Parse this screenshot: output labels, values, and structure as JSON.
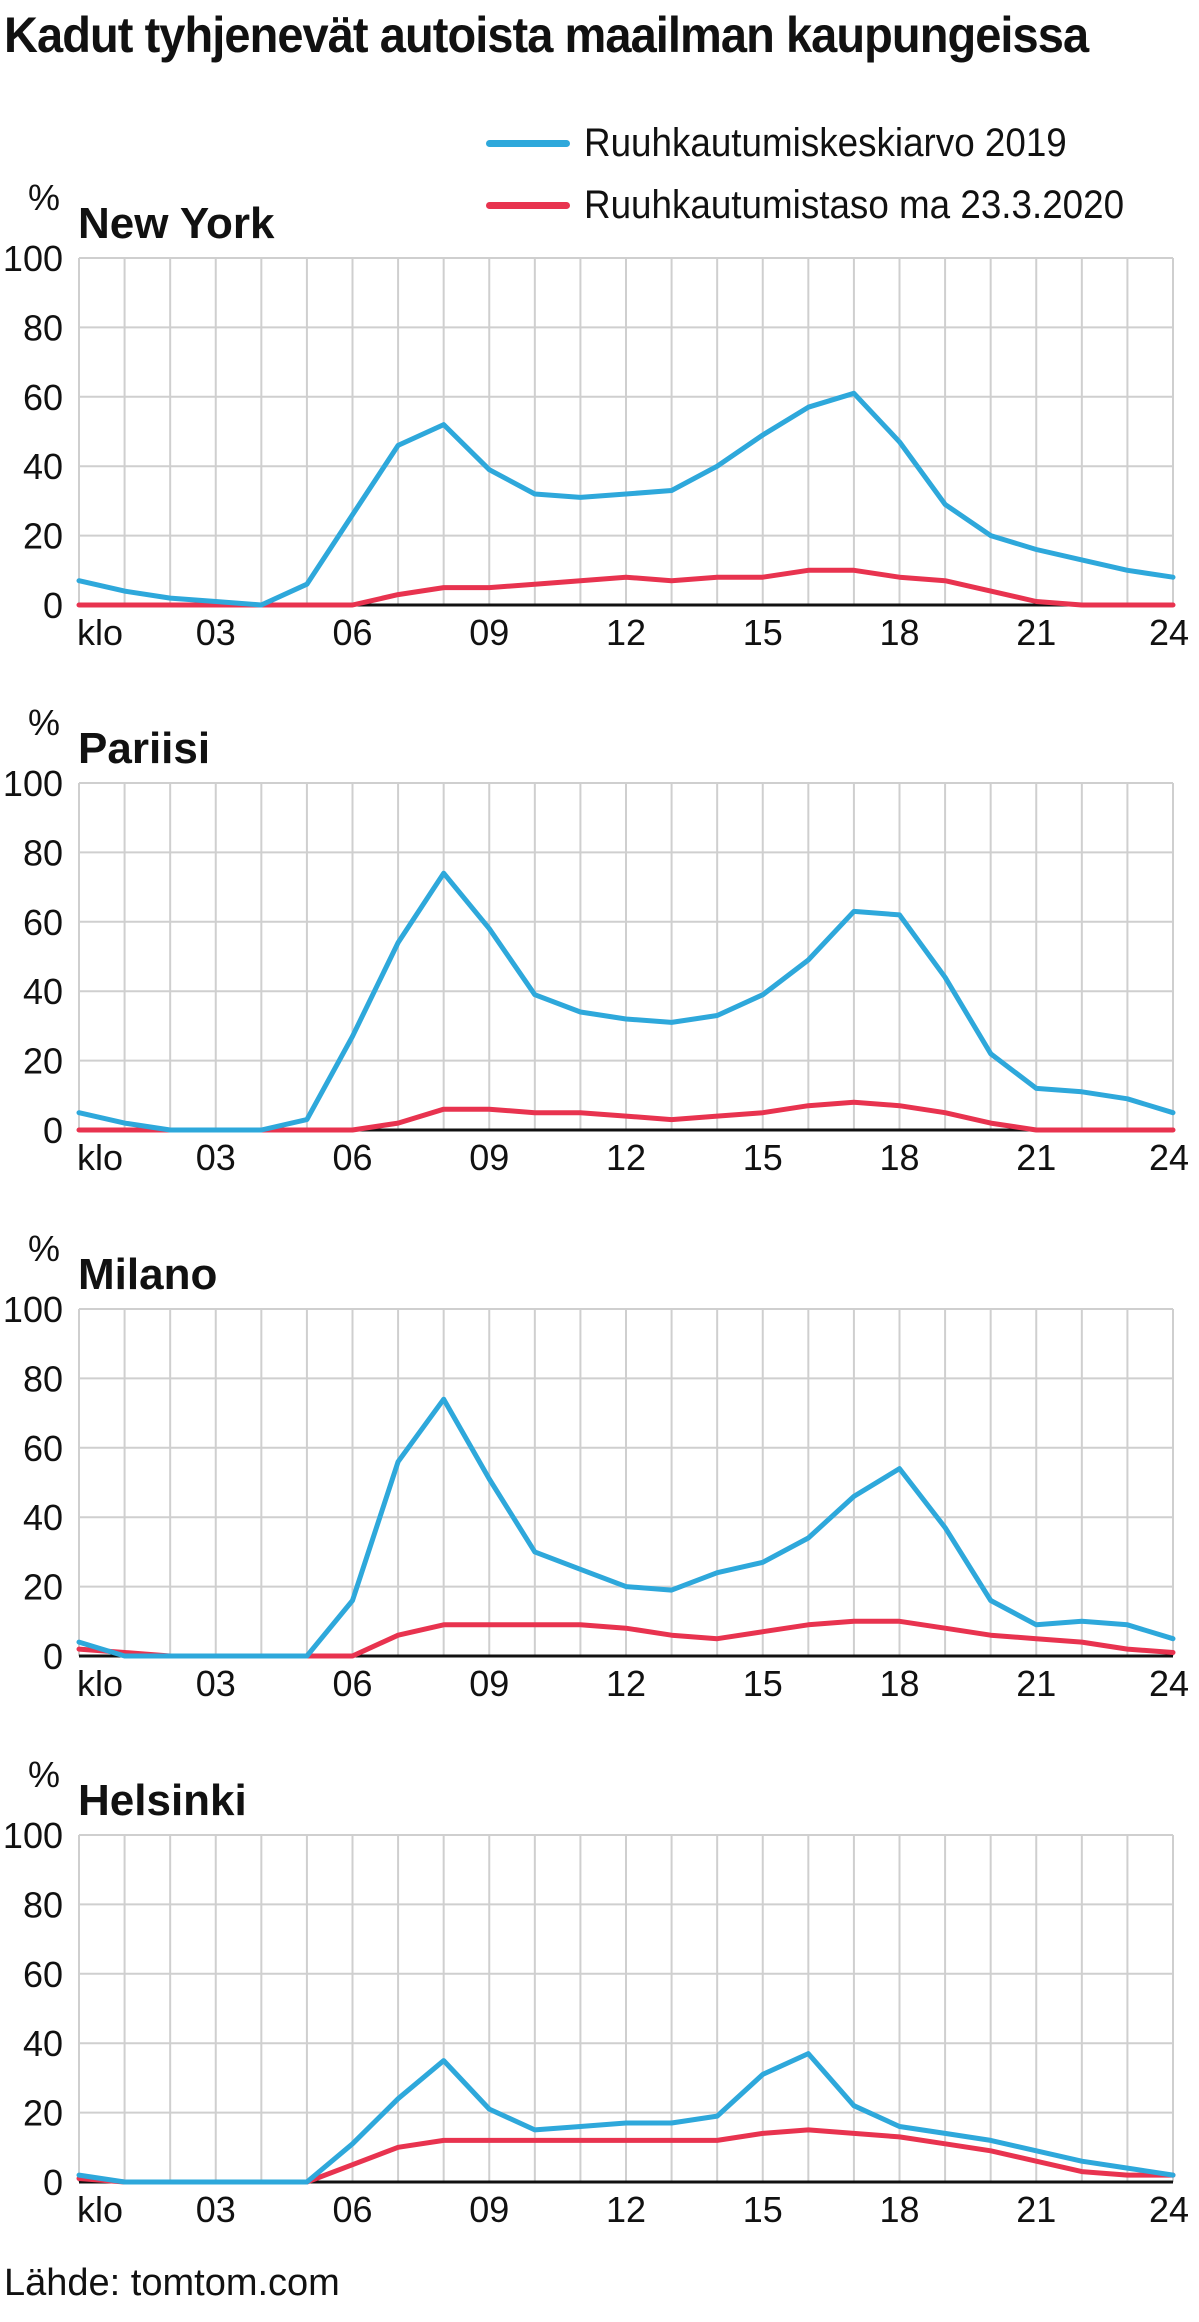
{
  "title": "Kadut tyhjenevät autoista maailman kaupungeissa",
  "legend": [
    {
      "label": "Ruuhkautumiskeskiarvo 2019",
      "color": "#2ea8db"
    },
    {
      "label": "Ruuhkautumistaso ma 23.3.2020",
      "color": "#e8334f"
    }
  ],
  "source": "Lähde: tomtom.com",
  "chart_data": [
    {
      "type": "line",
      "title": "New York",
      "ylabel": "%",
      "ylim": [
        0,
        100
      ],
      "yticks": [
        0,
        20,
        40,
        60,
        80,
        100
      ],
      "xlim": [
        0,
        24
      ],
      "xticks": [
        {
          "x": 0,
          "label": "klo"
        },
        {
          "x": 3,
          "label": "03"
        },
        {
          "x": 6,
          "label": "06"
        },
        {
          "x": 9,
          "label": "09"
        },
        {
          "x": 12,
          "label": "12"
        },
        {
          "x": 15,
          "label": "15"
        },
        {
          "x": 18,
          "label": "18"
        },
        {
          "x": 21,
          "label": "21"
        },
        {
          "x": 24,
          "label": "24"
        }
      ],
      "grid": true,
      "x": [
        0,
        1,
        2,
        3,
        4,
        5,
        6,
        7,
        8,
        9,
        10,
        11,
        12,
        13,
        14,
        15,
        16,
        17,
        18,
        19,
        20,
        21,
        22,
        23,
        24
      ],
      "series": [
        {
          "name": "Ruuhkautumiskeskiarvo 2019",
          "color": "#2ea8db",
          "values": [
            7,
            4,
            2,
            1,
            0,
            6,
            26,
            46,
            52,
            39,
            32,
            31,
            32,
            33,
            40,
            49,
            57,
            61,
            47,
            29,
            20,
            16,
            13,
            10,
            8
          ]
        },
        {
          "name": "Ruuhkautumistaso ma 23.3.2020",
          "color": "#e8334f",
          "values": [
            0,
            0,
            0,
            0,
            0,
            0,
            0,
            3,
            5,
            5,
            6,
            7,
            8,
            7,
            8,
            8,
            10,
            10,
            8,
            7,
            4,
            1,
            0,
            0,
            0
          ]
        }
      ]
    },
    {
      "type": "line",
      "title": "Pariisi",
      "ylabel": "%",
      "ylim": [
        0,
        100
      ],
      "yticks": [
        0,
        20,
        40,
        60,
        80,
        100
      ],
      "xlim": [
        0,
        24
      ],
      "xticks": [
        {
          "x": 0,
          "label": "klo"
        },
        {
          "x": 3,
          "label": "03"
        },
        {
          "x": 6,
          "label": "06"
        },
        {
          "x": 9,
          "label": "09"
        },
        {
          "x": 12,
          "label": "12"
        },
        {
          "x": 15,
          "label": "15"
        },
        {
          "x": 18,
          "label": "18"
        },
        {
          "x": 21,
          "label": "21"
        },
        {
          "x": 24,
          "label": "24"
        }
      ],
      "grid": true,
      "x": [
        0,
        1,
        2,
        3,
        4,
        5,
        6,
        7,
        8,
        9,
        10,
        11,
        12,
        13,
        14,
        15,
        16,
        17,
        18,
        19,
        20,
        21,
        22,
        23,
        24
      ],
      "series": [
        {
          "name": "Ruuhkautumiskeskiarvo 2019",
          "color": "#2ea8db",
          "values": [
            5,
            2,
            0,
            0,
            0,
            3,
            27,
            54,
            74,
            58,
            39,
            34,
            32,
            31,
            33,
            39,
            49,
            63,
            62,
            44,
            22,
            12,
            11,
            9,
            5
          ]
        },
        {
          "name": "Ruuhkautumistaso ma 23.3.2020",
          "color": "#e8334f",
          "values": [
            0,
            0,
            0,
            0,
            0,
            0,
            0,
            2,
            6,
            6,
            5,
            5,
            4,
            3,
            4,
            5,
            7,
            8,
            7,
            5,
            2,
            0,
            0,
            0,
            0
          ]
        }
      ]
    },
    {
      "type": "line",
      "title": "Milano",
      "ylabel": "%",
      "ylim": [
        0,
        100
      ],
      "yticks": [
        0,
        20,
        40,
        60,
        80,
        100
      ],
      "xlim": [
        0,
        24
      ],
      "xticks": [
        {
          "x": 0,
          "label": "klo"
        },
        {
          "x": 3,
          "label": "03"
        },
        {
          "x": 6,
          "label": "06"
        },
        {
          "x": 9,
          "label": "09"
        },
        {
          "x": 12,
          "label": "12"
        },
        {
          "x": 15,
          "label": "15"
        },
        {
          "x": 18,
          "label": "18"
        },
        {
          "x": 21,
          "label": "21"
        },
        {
          "x": 24,
          "label": "24"
        }
      ],
      "grid": true,
      "x": [
        0,
        1,
        2,
        3,
        4,
        5,
        6,
        7,
        8,
        9,
        10,
        11,
        12,
        13,
        14,
        15,
        16,
        17,
        18,
        19,
        20,
        21,
        22,
        23,
        24
      ],
      "series": [
        {
          "name": "Ruuhkautumiskeskiarvo 2019",
          "color": "#2ea8db",
          "values": [
            4,
            0,
            0,
            0,
            0,
            0,
            16,
            56,
            74,
            51,
            30,
            25,
            20,
            19,
            24,
            27,
            34,
            46,
            54,
            37,
            16,
            9,
            10,
            9,
            5
          ]
        },
        {
          "name": "Ruuhkautumistaso ma 23.3.2020",
          "color": "#e8334f",
          "values": [
            2,
            1,
            0,
            0,
            0,
            0,
            0,
            6,
            9,
            9,
            9,
            9,
            8,
            6,
            5,
            7,
            9,
            10,
            10,
            8,
            6,
            5,
            4,
            2,
            1
          ]
        }
      ]
    },
    {
      "type": "line",
      "title": "Helsinki",
      "ylabel": "%",
      "ylim": [
        0,
        100
      ],
      "yticks": [
        0,
        20,
        40,
        60,
        80,
        100
      ],
      "xlim": [
        0,
        24
      ],
      "xticks": [
        {
          "x": 0,
          "label": "klo"
        },
        {
          "x": 3,
          "label": "03"
        },
        {
          "x": 6,
          "label": "06"
        },
        {
          "x": 9,
          "label": "09"
        },
        {
          "x": 12,
          "label": "12"
        },
        {
          "x": 15,
          "label": "15"
        },
        {
          "x": 18,
          "label": "18"
        },
        {
          "x": 21,
          "label": "21"
        },
        {
          "x": 24,
          "label": "24"
        }
      ],
      "grid": true,
      "x": [
        0,
        1,
        2,
        3,
        4,
        5,
        6,
        7,
        8,
        9,
        10,
        11,
        12,
        13,
        14,
        15,
        16,
        17,
        18,
        19,
        20,
        21,
        22,
        23,
        24
      ],
      "series": [
        {
          "name": "Ruuhkautumiskeskiarvo 2019",
          "color": "#2ea8db",
          "values": [
            2,
            0,
            0,
            0,
            0,
            0,
            11,
            24,
            35,
            21,
            15,
            16,
            17,
            17,
            19,
            31,
            37,
            22,
            16,
            14,
            12,
            9,
            6,
            4,
            2
          ]
        },
        {
          "name": "Ruuhkautumistaso ma 23.3.2020",
          "color": "#e8334f",
          "values": [
            1,
            0,
            0,
            0,
            0,
            0,
            5,
            10,
            12,
            12,
            12,
            12,
            12,
            12,
            12,
            14,
            15,
            14,
            13,
            11,
            9,
            6,
            3,
            2,
            2
          ]
        }
      ]
    }
  ]
}
